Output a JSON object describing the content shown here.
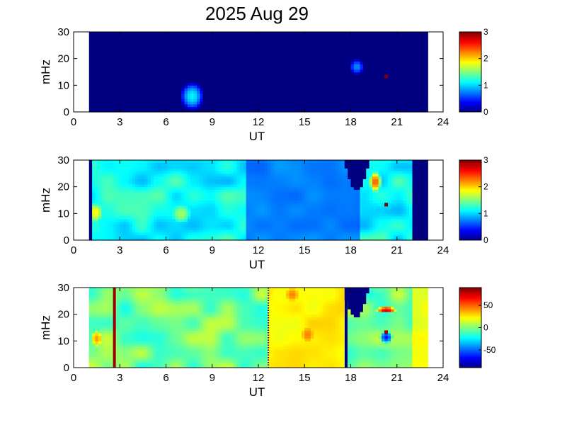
{
  "figure": {
    "title": "2025 Aug 29"
  },
  "chart_data": [
    {
      "type": "heatmap",
      "panel": "panel-1",
      "xlabel": "UT",
      "ylabel": "mHz",
      "xlim": [
        0,
        24
      ],
      "ylim": [
        0,
        30
      ],
      "xticks": [
        0,
        3,
        6,
        9,
        12,
        15,
        18,
        21,
        24
      ],
      "yticks": [
        0,
        10,
        20,
        30
      ],
      "data_x_range": [
        1,
        23
      ],
      "background_value": 0,
      "features": [
        {
          "kind": "blob",
          "ut": 7.7,
          "mhz": 6,
          "ut_width": 1.6,
          "mhz_height": 11,
          "value": 1.1
        },
        {
          "kind": "blob",
          "ut": 18.4,
          "mhz": 17,
          "ut_width": 1.0,
          "mhz_height": 6,
          "value": 0.8
        },
        {
          "kind": "blob",
          "ut": 5.4,
          "mhz": 14,
          "ut_width": 0.4,
          "mhz_height": 1,
          "value": 0.5
        },
        {
          "kind": "point",
          "ut": 20.3,
          "mhz": 13.3,
          "value": 3
        }
      ],
      "colorbar": {
        "min": 0,
        "max": 3,
        "ticks": [
          "0",
          "1",
          "2",
          "3"
        ]
      }
    },
    {
      "type": "heatmap",
      "panel": "panel-2",
      "xlabel": "UT",
      "ylabel": "mHz",
      "xlim": [
        0,
        24
      ],
      "ylim": [
        0,
        30
      ],
      "xticks": [
        0,
        3,
        6,
        9,
        12,
        15,
        18,
        21,
        24
      ],
      "yticks": [
        0,
        10,
        20,
        30
      ],
      "data_x_range": [
        1,
        23
      ],
      "base_value_range": [
        0.9,
        1.4
      ],
      "features": [
        {
          "kind": "band",
          "ut_from": 1.0,
          "ut_to": 1.15,
          "value": 0
        },
        {
          "kind": "band",
          "ut_from": 22.0,
          "ut_to": 23.0,
          "value": 0
        },
        {
          "kind": "region",
          "ut_from": 11.2,
          "ut_to": 18.5,
          "mhz_from": 0,
          "mhz_to": 30,
          "value": 0.75
        },
        {
          "kind": "blob",
          "ut": 1.4,
          "mhz": 10.5,
          "ut_width": 1.0,
          "mhz_height": 7,
          "value": 1.9
        },
        {
          "kind": "blob",
          "ut": 7.0,
          "mhz": 10,
          "ut_width": 1.2,
          "mhz_height": 7,
          "value": 1.6
        },
        {
          "kind": "blob",
          "ut": 19.6,
          "mhz": 22,
          "ut_width": 0.8,
          "mhz_height": 8,
          "value": 2.4
        },
        {
          "kind": "dropout",
          "ut_from": 17.6,
          "ut_to": 19.2,
          "mhz_top": 30,
          "mhz_bottom_min": 18.5,
          "value": 0
        },
        {
          "kind": "point",
          "ut": 20.3,
          "mhz": 13.3,
          "value": 3
        }
      ],
      "colorbar": {
        "min": 0,
        "max": 3,
        "ticks": [
          "0",
          "1",
          "2",
          "3"
        ]
      }
    },
    {
      "type": "heatmap",
      "panel": "panel-3",
      "xlabel": "UT",
      "ylabel": "mHz",
      "xlim": [
        0,
        24
      ],
      "ylim": [
        0,
        30
      ],
      "xticks": [
        0,
        3,
        6,
        9,
        12,
        15,
        18,
        21,
        24
      ],
      "yticks": [
        0,
        10,
        20,
        30
      ],
      "data_x_range": [
        1,
        23
      ],
      "base_value_range": [
        -20,
        15
      ],
      "features": [
        {
          "kind": "region",
          "ut_from": 12.7,
          "ut_to": 17.5,
          "mhz_from": 0,
          "mhz_to": 30,
          "value": 25
        },
        {
          "kind": "region",
          "ut_from": 22.0,
          "ut_to": 23.0,
          "mhz_from": 0,
          "mhz_to": 30,
          "value": 20
        },
        {
          "kind": "line",
          "ut": 2.65,
          "value": 85
        },
        {
          "kind": "line",
          "ut": 17.7,
          "value": -90
        },
        {
          "kind": "dotted-line",
          "ut": 12.65,
          "value": -80
        },
        {
          "kind": "blob",
          "ut": 14.2,
          "mhz": 27.5,
          "ut_width": 0.9,
          "mhz_height": 5,
          "value": 45
        },
        {
          "kind": "blob",
          "ut": 15.2,
          "mhz": 12.5,
          "ut_width": 0.8,
          "mhz_height": 6,
          "value": 45
        },
        {
          "kind": "blob",
          "ut": 1.5,
          "mhz": 11,
          "ut_width": 0.8,
          "mhz_height": 6,
          "value": 40
        },
        {
          "kind": "blob",
          "ut": 20.3,
          "mhz": 21.8,
          "ut_width": 1.4,
          "mhz_height": 2.5,
          "value": 80
        },
        {
          "kind": "blob",
          "ut": 20.3,
          "mhz": 11.5,
          "ut_width": 0.9,
          "mhz_height": 5,
          "value": -65
        },
        {
          "kind": "dropout",
          "ut_from": 17.5,
          "ut_to": 19.2,
          "mhz_top": 30,
          "mhz_bottom_min": 19,
          "value": -90
        },
        {
          "kind": "point",
          "ut": 20.3,
          "mhz": 13.3,
          "value": 85
        }
      ],
      "colorbar": {
        "min": -90,
        "max": 90,
        "ticks": [
          "-50",
          "0",
          "50"
        ]
      }
    }
  ]
}
